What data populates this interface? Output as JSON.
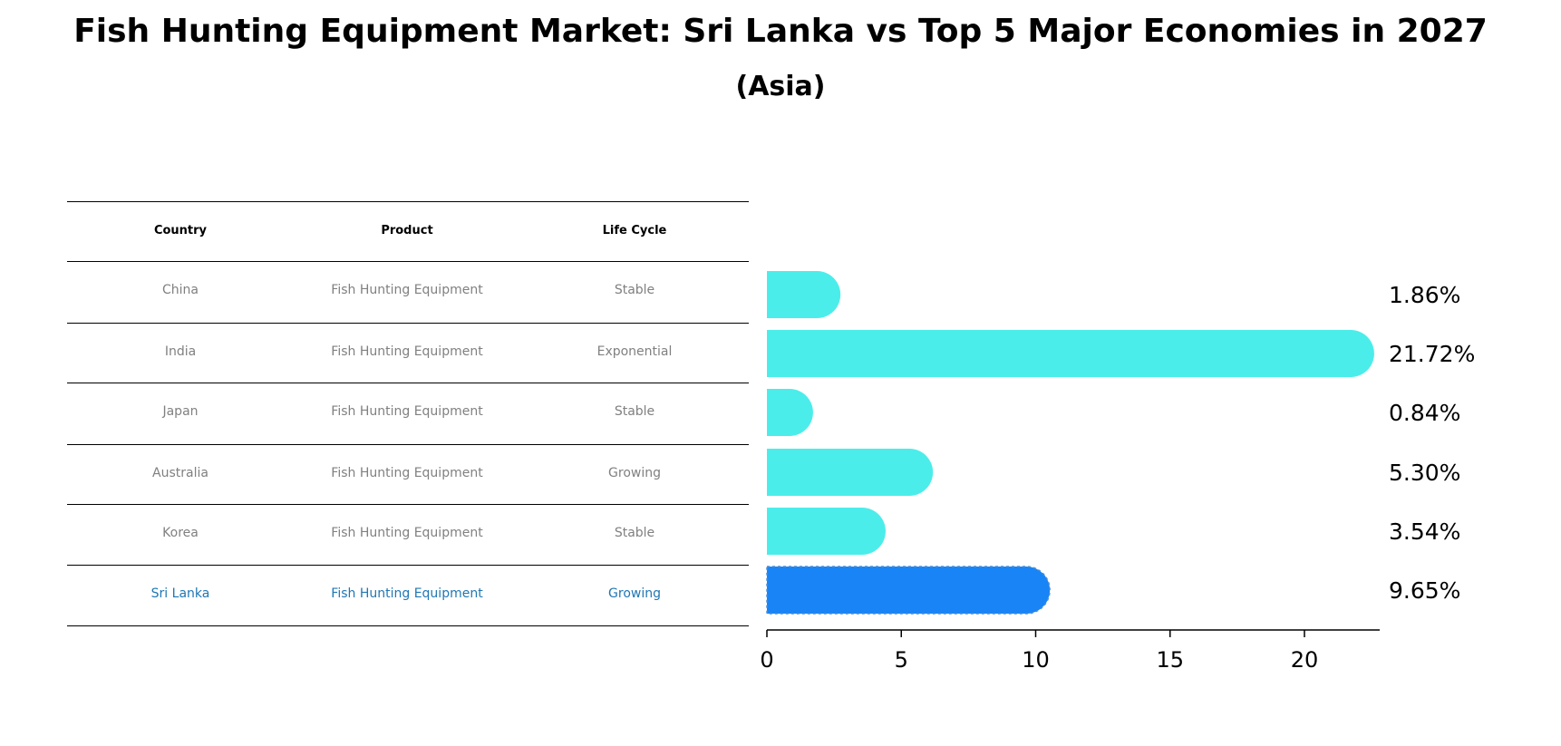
{
  "title": "Fish Hunting Equipment Market: Sri Lanka vs Top 5 Major Economies in 2027",
  "subtitle": "(Asia)",
  "table": {
    "headers": [
      "Country",
      "Product",
      "Life Cycle"
    ],
    "rows": [
      [
        "China",
        "Fish Hunting Equipment",
        "Stable"
      ],
      [
        "India",
        "Fish Hunting Equipment",
        "Exponential"
      ],
      [
        "Japan",
        "Fish Hunting Equipment",
        "Stable"
      ],
      [
        "Australia",
        "Fish Hunting Equipment",
        "Growing"
      ],
      [
        "Korea",
        "Fish Hunting Equipment",
        "Stable"
      ],
      [
        "Sri Lanka",
        "Fish Hunting Equipment",
        "Growing"
      ]
    ],
    "highlight_row": 5
  },
  "chart_data": {
    "type": "bar",
    "orientation": "horizontal",
    "categories": [
      "China",
      "India",
      "Japan",
      "Australia",
      "Korea",
      "Sri Lanka"
    ],
    "values": [
      1.86,
      21.72,
      0.84,
      5.3,
      3.54,
      9.65
    ],
    "value_labels": [
      "1.86%",
      "21.72%",
      "0.84%",
      "5.30%",
      "3.54%",
      "9.65%"
    ],
    "xlim": [
      0,
      22.8
    ],
    "xticks": [
      0,
      5,
      10,
      15,
      20
    ],
    "colors": {
      "default": "#4bedea",
      "highlight": "#1984f5"
    },
    "highlight_index": 5
  }
}
